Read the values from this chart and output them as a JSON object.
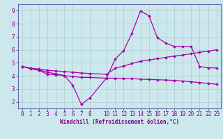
{
  "xlabel": "Windchill (Refroidissement éolien,°C)",
  "background_color": "#cce8ed",
  "grid_color": "#aacccc",
  "line_color": "#aa00aa",
  "xlim": [
    -0.5,
    23.5
  ],
  "ylim": [
    1.5,
    9.5
  ],
  "yticks": [
    2,
    3,
    4,
    5,
    6,
    7,
    8,
    9
  ],
  "xticks": [
    0,
    1,
    2,
    3,
    4,
    5,
    6,
    7,
    8,
    10,
    11,
    12,
    13,
    14,
    15,
    16,
    17,
    18,
    19,
    20,
    21,
    22,
    23
  ],
  "line1_x": [
    0,
    1,
    2,
    3,
    4,
    5,
    6,
    7,
    8,
    10,
    11,
    12,
    13,
    14,
    15,
    16,
    17,
    18,
    19,
    20,
    21,
    22,
    23
  ],
  "line1_y": [
    4.72,
    4.55,
    4.42,
    4.12,
    4.08,
    4.03,
    3.28,
    1.82,
    2.28,
    3.85,
    5.28,
    5.92,
    7.28,
    8.98,
    8.62,
    6.92,
    6.52,
    6.25,
    6.25,
    6.25,
    4.72,
    4.62,
    4.6
  ],
  "line2_x": [
    0,
    1,
    2,
    3,
    4,
    5,
    6,
    7,
    8,
    10,
    11,
    12,
    13,
    14,
    15,
    16,
    17,
    18,
    19,
    20,
    21,
    22,
    23
  ],
  "line2_y": [
    4.72,
    4.6,
    4.52,
    4.42,
    4.38,
    4.32,
    4.28,
    4.22,
    4.18,
    4.12,
    4.58,
    4.75,
    4.95,
    5.12,
    5.22,
    5.32,
    5.42,
    5.52,
    5.6,
    5.7,
    5.8,
    5.9,
    6.0
  ],
  "line3_x": [
    0,
    1,
    2,
    3,
    4,
    5,
    6,
    7,
    8,
    10,
    11,
    12,
    13,
    14,
    15,
    16,
    17,
    18,
    19,
    20,
    21,
    22,
    23
  ],
  "line3_y": [
    4.72,
    4.58,
    4.45,
    4.28,
    4.15,
    4.02,
    3.95,
    3.88,
    3.88,
    3.82,
    3.82,
    3.8,
    3.78,
    3.75,
    3.72,
    3.7,
    3.68,
    3.65,
    3.6,
    3.55,
    3.48,
    3.42,
    3.35
  ]
}
